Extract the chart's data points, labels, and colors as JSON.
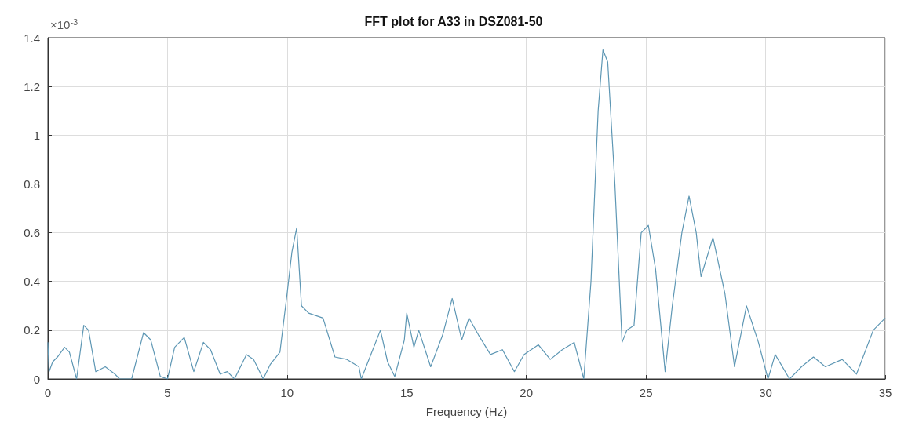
{
  "chart_data": {
    "type": "line",
    "title": "FFT plot for A33 in DSZ081-50",
    "xlabel": "Frequency (Hz)",
    "annotations": [
      "×10$^{-3}$"
    ],
    "xlim": [
      0,
      35
    ],
    "xticks": [
      0,
      5,
      10,
      15,
      20,
      25,
      30,
      35
    ],
    "ylim": [
      0,
      1.4
    ],
    "yticks": [
      0,
      0.2,
      0.4,
      0.6,
      0.8,
      1,
      1.2,
      1.4
    ],
    "grid": true,
    "marker": "none",
    "line_style": "solid",
    "series": [
      {
        "color": "#5e97b4",
        "x": [
          0,
          0.05,
          0.2,
          0.4,
          0.7,
          0.9,
          1.2,
          1.5,
          1.7,
          2.0,
          2.4,
          2.8,
          3.0,
          3.5,
          4.0,
          4.3,
          4.7,
          5.0,
          5.3,
          5.7,
          6.1,
          6.5,
          6.8,
          7.2,
          7.5,
          7.8,
          8.3,
          8.6,
          9.0,
          9.3,
          9.7,
          10.0,
          10.2,
          10.4,
          10.6,
          10.9,
          11.5,
          12.0,
          12.5,
          13.0,
          13.1,
          13.5,
          13.9,
          14.2,
          14.5,
          14.9,
          15.0,
          15.3,
          15.5,
          16.0,
          16.5,
          16.9,
          17.3,
          17.6,
          18.0,
          18.5,
          19.0,
          19.5,
          19.9,
          20.5,
          21.0,
          21.5,
          22.0,
          22.4,
          22.7,
          23.0,
          23.2,
          23.4,
          23.7,
          24.0,
          24.2,
          24.5,
          24.8,
          25.1,
          25.4,
          25.8,
          26.1,
          26.5,
          26.8,
          27.1,
          27.3,
          27.8,
          28.3,
          28.7,
          29.2,
          29.7,
          30.1,
          30.4,
          31.0,
          31.5,
          32.0,
          32.5,
          33.2,
          33.8,
          34.5,
          35
        ],
        "values": [
          0.15,
          0.03,
          0.07,
          0.09,
          0.13,
          0.11,
          0.0,
          0.22,
          0.2,
          0.03,
          0.05,
          0.02,
          0.0,
          0.0,
          0.19,
          0.16,
          0.01,
          0.0,
          0.13,
          0.17,
          0.03,
          0.15,
          0.12,
          0.02,
          0.03,
          0.0,
          0.1,
          0.08,
          0.0,
          0.06,
          0.11,
          0.35,
          0.52,
          0.62,
          0.3,
          0.27,
          0.25,
          0.09,
          0.08,
          0.05,
          0.0,
          0.1,
          0.2,
          0.07,
          0.01,
          0.16,
          0.27,
          0.13,
          0.2,
          0.05,
          0.18,
          0.33,
          0.16,
          0.25,
          0.18,
          0.1,
          0.12,
          0.03,
          0.1,
          0.14,
          0.08,
          0.12,
          0.15,
          0.0,
          0.4,
          1.1,
          1.35,
          1.3,
          0.8,
          0.15,
          0.2,
          0.22,
          0.6,
          0.63,
          0.45,
          0.03,
          0.3,
          0.6,
          0.75,
          0.6,
          0.42,
          0.58,
          0.35,
          0.05,
          0.3,
          0.15,
          0.0,
          0.1,
          0.0,
          0.05,
          0.09,
          0.05,
          0.08,
          0.02,
          0.2,
          0.25
        ]
      }
    ]
  }
}
